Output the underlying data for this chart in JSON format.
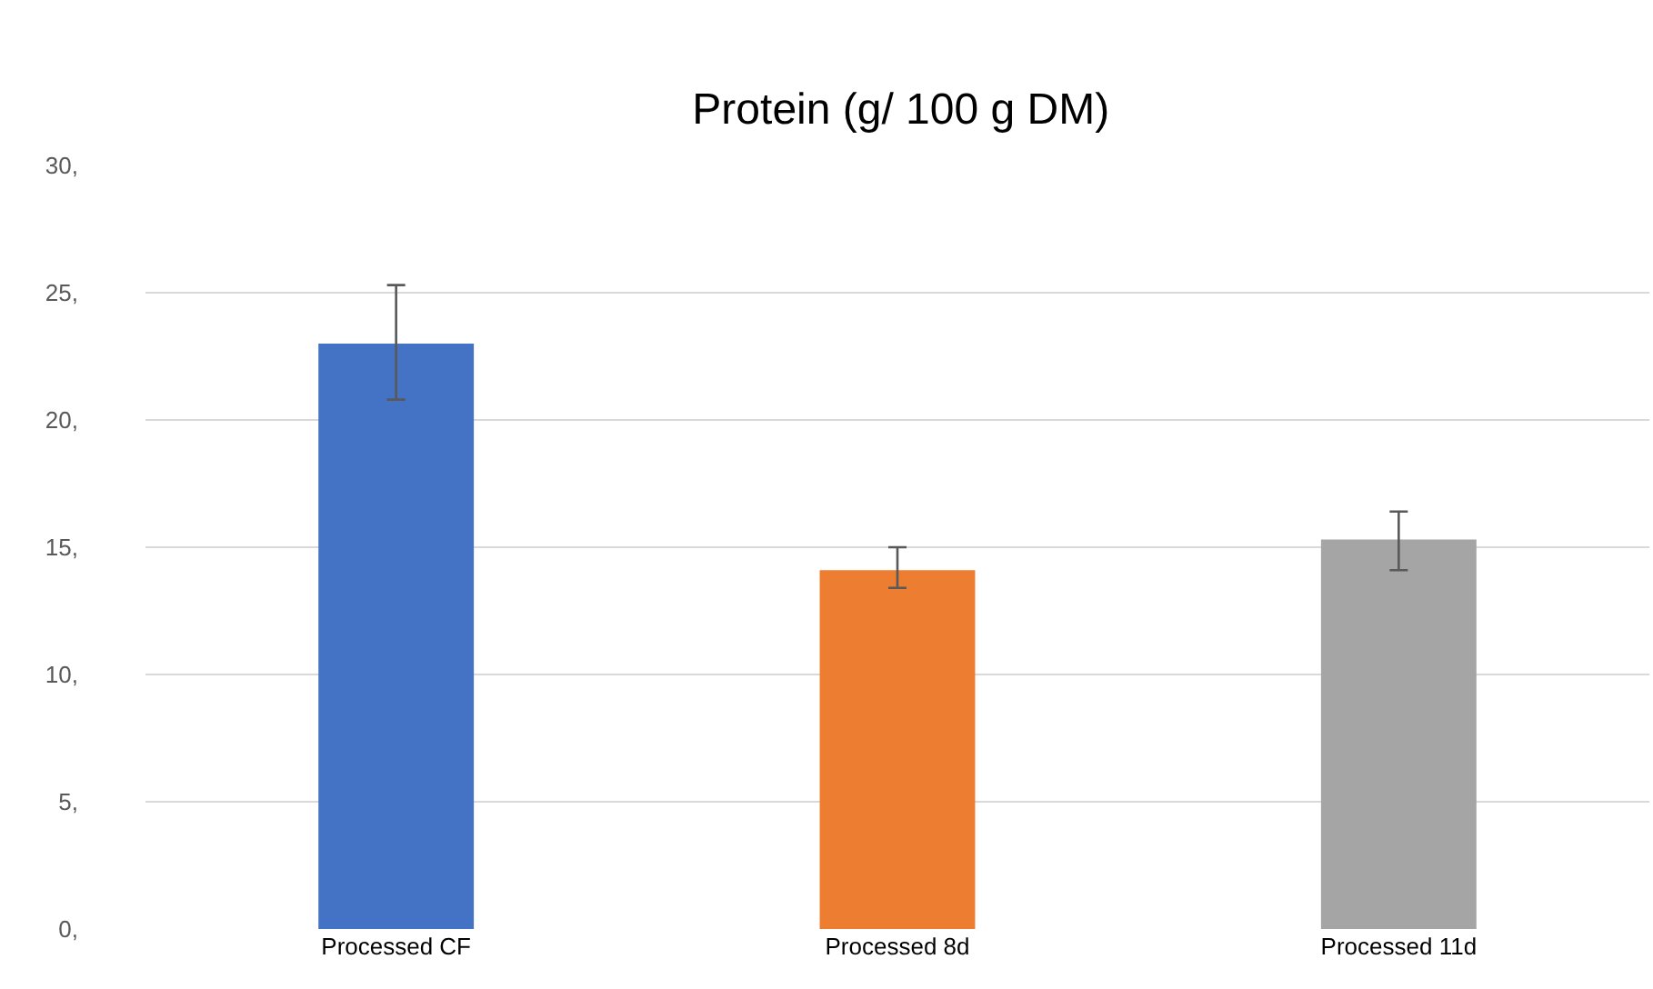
{
  "chart_data": {
    "type": "bar",
    "title": "Protein (g/ 100 g DM)",
    "categories": [
      "Processed CF",
      "Processed 8d",
      "Processed 11d"
    ],
    "values": [
      23.0,
      14.1,
      15.3
    ],
    "colors": [
      "#4472c4",
      "#ed7d31",
      "#a5a5a5"
    ],
    "errors": [
      [
        20.8,
        25.3
      ],
      [
        13.4,
        15.0
      ],
      [
        14.1,
        16.4
      ]
    ],
    "ylim": [
      0,
      30
    ],
    "yticks": [
      {
        "value": 0,
        "label": "0,"
      },
      {
        "value": 5,
        "label": "5,"
      },
      {
        "value": 10,
        "label": "10,"
      },
      {
        "value": 15,
        "label": "15,"
      },
      {
        "value": 20,
        "label": "20,"
      },
      {
        "value": 25,
        "label": "25,"
      },
      {
        "value": 30,
        "label": "30,"
      }
    ],
    "grid": "y"
  }
}
